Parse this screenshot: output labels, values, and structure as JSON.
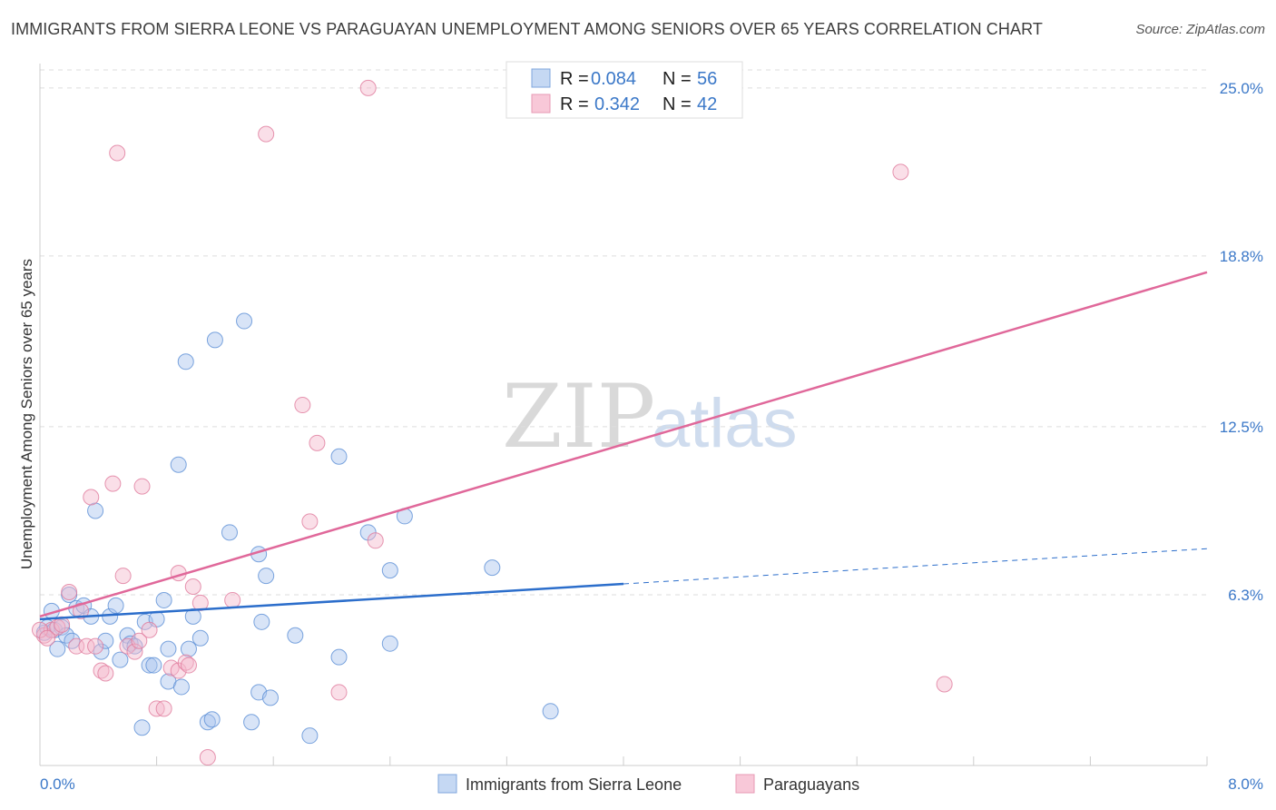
{
  "title": "IMMIGRANTS FROM SIERRA LEONE VS PARAGUAYAN UNEMPLOYMENT AMONG SENIORS OVER 65 YEARS CORRELATION CHART",
  "source": "Source: ZipAtlas.com",
  "watermark": {
    "zip": "ZIP",
    "atlas": "atlas"
  },
  "colors": {
    "blue_fill": "#a9c4ee",
    "blue_stroke": "#5b8fd6",
    "blue_line": "#2c6ecb",
    "pink_fill": "#f5b8cb",
    "pink_stroke": "#e07a9c",
    "pink_line": "#e0689a",
    "grid": "#dddddd",
    "tick_text": "#3b78c8"
  },
  "chart_data": {
    "type": "scatter",
    "xlabel": "",
    "ylabel": "Unemployment Among Seniors over 65 years",
    "xlim": [
      0,
      8
    ],
    "ylim": [
      0,
      25.9
    ],
    "x_tick_labels": [
      "0.0%",
      "8.0%"
    ],
    "y_ticks": [
      6.3,
      12.5,
      18.8,
      25.0
    ],
    "y_tick_labels": [
      "6.3%",
      "12.5%",
      "18.8%",
      "25.0%"
    ],
    "legend": [
      {
        "label": "R = ",
        "r": "0.084",
        "n_label": "N = ",
        "n": "56"
      },
      {
        "label": "R = ",
        "r": "0.342",
        "n_label": "N = ",
        "n": "42"
      }
    ],
    "series": [
      {
        "name": "Immigrants from Sierra Leone",
        "color": "blue",
        "points": [
          [
            0.03,
            4.9
          ],
          [
            0.05,
            5.1
          ],
          [
            0.08,
            5.7
          ],
          [
            0.1,
            5.0
          ],
          [
            0.12,
            4.3
          ],
          [
            0.15,
            5.1
          ],
          [
            0.18,
            4.8
          ],
          [
            0.2,
            6.3
          ],
          [
            0.22,
            4.6
          ],
          [
            0.25,
            5.8
          ],
          [
            0.3,
            5.9
          ],
          [
            0.35,
            5.5
          ],
          [
            0.38,
            9.4
          ],
          [
            0.42,
            4.2
          ],
          [
            0.45,
            4.6
          ],
          [
            0.48,
            5.5
          ],
          [
            0.52,
            5.9
          ],
          [
            0.55,
            3.9
          ],
          [
            0.6,
            4.8
          ],
          [
            0.62,
            4.5
          ],
          [
            0.65,
            4.4
          ],
          [
            0.7,
            1.4
          ],
          [
            0.72,
            5.3
          ],
          [
            0.75,
            3.7
          ],
          [
            0.78,
            3.7
          ],
          [
            0.8,
            5.4
          ],
          [
            0.85,
            6.1
          ],
          [
            0.88,
            3.1
          ],
          [
            0.88,
            4.3
          ],
          [
            0.95,
            11.1
          ],
          [
            0.97,
            2.9
          ],
          [
            1.0,
            14.9
          ],
          [
            1.02,
            4.3
          ],
          [
            1.05,
            5.5
          ],
          [
            1.1,
            4.7
          ],
          [
            1.15,
            1.6
          ],
          [
            1.18,
            1.7
          ],
          [
            1.2,
            15.7
          ],
          [
            1.3,
            8.6
          ],
          [
            1.4,
            16.4
          ],
          [
            1.45,
            1.6
          ],
          [
            1.5,
            2.7
          ],
          [
            1.52,
            5.3
          ],
          [
            1.55,
            7.0
          ],
          [
            1.58,
            2.5
          ],
          [
            1.5,
            7.8
          ],
          [
            1.75,
            4.8
          ],
          [
            1.85,
            1.1
          ],
          [
            2.05,
            11.4
          ],
          [
            2.05,
            4.0
          ],
          [
            2.25,
            8.6
          ],
          [
            2.4,
            4.5
          ],
          [
            2.4,
            7.2
          ],
          [
            2.5,
            9.2
          ],
          [
            3.1,
            7.3
          ],
          [
            3.5,
            2.0
          ]
        ]
      },
      {
        "name": "Paraguayans",
        "color": "pink",
        "points": [
          [
            0.03,
            4.8
          ],
          [
            0.08,
            5.0
          ],
          [
            0.12,
            5.1
          ],
          [
            0.15,
            5.2
          ],
          [
            0.2,
            6.4
          ],
          [
            0.25,
            4.4
          ],
          [
            0.28,
            5.7
          ],
          [
            0.32,
            4.4
          ],
          [
            0.35,
            9.9
          ],
          [
            0.38,
            4.4
          ],
          [
            0.42,
            3.5
          ],
          [
            0.45,
            3.4
          ],
          [
            0.5,
            10.4
          ],
          [
            0.53,
            22.6
          ],
          [
            0.57,
            7.0
          ],
          [
            0.6,
            4.4
          ],
          [
            0.65,
            4.2
          ],
          [
            0.68,
            4.6
          ],
          [
            0.7,
            10.3
          ],
          [
            0.75,
            5.0
          ],
          [
            0.8,
            2.1
          ],
          [
            0.85,
            2.1
          ],
          [
            0.9,
            3.6
          ],
          [
            0.95,
            3.5
          ],
          [
            0.95,
            7.1
          ],
          [
            1.0,
            3.8
          ],
          [
            1.02,
            3.7
          ],
          [
            1.05,
            6.6
          ],
          [
            1.1,
            6.0
          ],
          [
            1.15,
            0.3
          ],
          [
            1.32,
            6.1
          ],
          [
            1.55,
            23.3
          ],
          [
            1.8,
            13.3
          ],
          [
            1.85,
            9.0
          ],
          [
            1.9,
            11.9
          ],
          [
            2.05,
            2.7
          ],
          [
            2.3,
            8.3
          ],
          [
            2.25,
            25.0
          ],
          [
            5.9,
            21.9
          ],
          [
            6.2,
            3.0
          ],
          [
            0.0,
            5.0
          ],
          [
            0.05,
            4.7
          ]
        ]
      }
    ],
    "trendlines": [
      {
        "series": "Immigrants from Sierra Leone",
        "x0": 0.0,
        "y0": 5.4,
        "x1": 4.0,
        "y1": 6.7,
        "dashed_to_x": 8.0,
        "dashed_to_y": 8.0
      },
      {
        "series": "Paraguayans",
        "x0": 0.0,
        "y0": 5.5,
        "x1": 8.0,
        "y1": 18.2
      }
    ]
  }
}
